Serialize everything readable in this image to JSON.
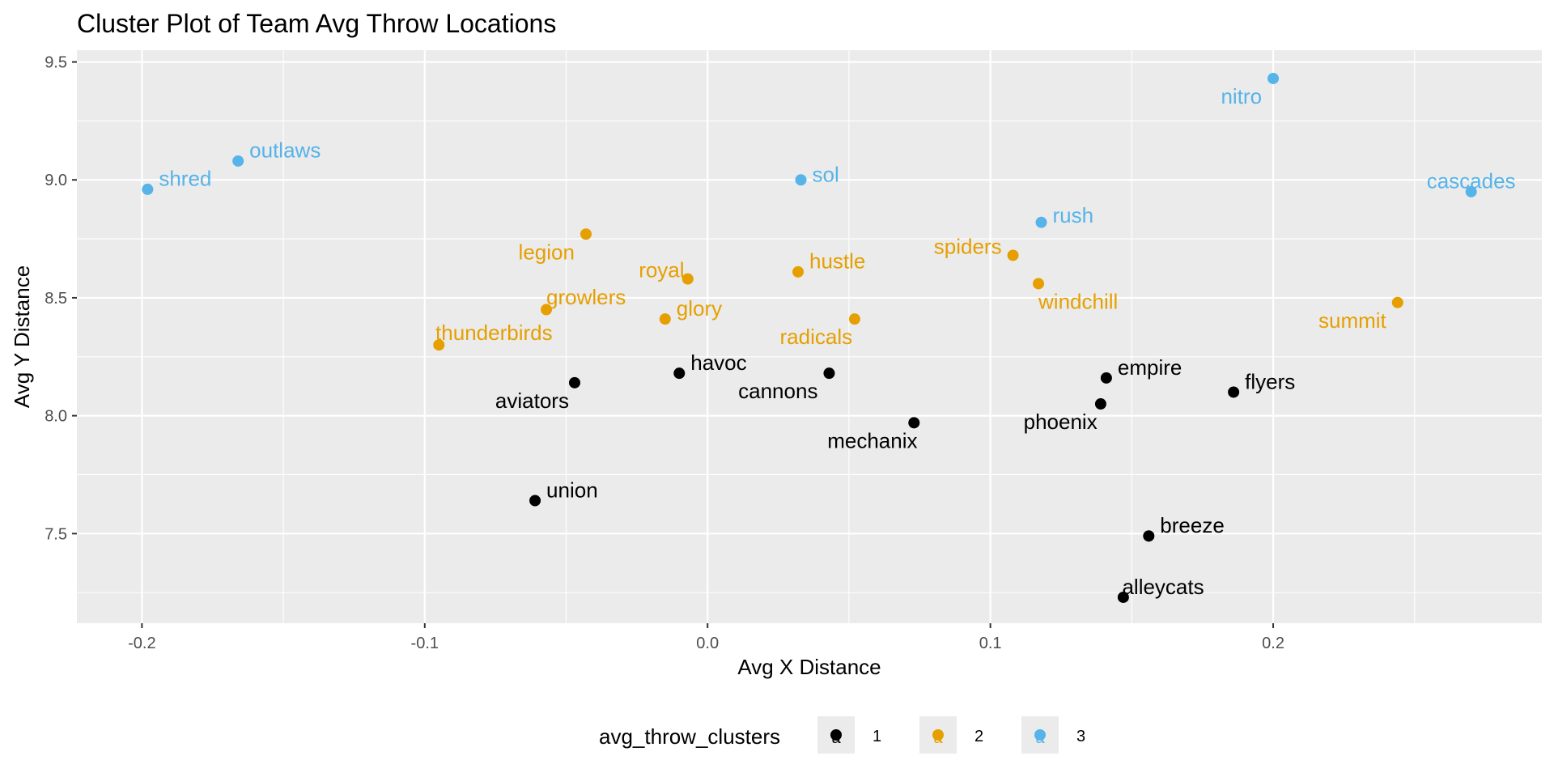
{
  "chart_data": {
    "type": "scatter",
    "title": "Cluster Plot of Team Avg Throw Locations",
    "xlabel": "Avg X Distance",
    "ylabel": "Avg Y Distance",
    "xlim": [
      -0.223,
      0.295
    ],
    "ylim": [
      7.12,
      9.55
    ],
    "x_ticks": [
      -0.2,
      -0.1,
      0.0,
      0.1,
      0.2
    ],
    "x_tick_labels": [
      "-0.2",
      "-0.1",
      "0.0",
      "0.1",
      "0.2"
    ],
    "y_ticks": [
      7.5,
      8.0,
      8.5,
      9.0,
      9.5
    ],
    "y_tick_labels": [
      "7.5",
      "8.0",
      "8.5",
      "9.0",
      "9.5"
    ],
    "grid": true,
    "legend": {
      "title": "avg_throw_clusters",
      "position": "bottom",
      "key_glyph": "a",
      "entries": [
        {
          "label": "1",
          "color": "#000000"
        },
        {
          "label": "2",
          "color": "#E69F00"
        },
        {
          "label": "3",
          "color": "#56B4E9"
        }
      ]
    },
    "colors": {
      "1": "#000000",
      "2": "#E69F00",
      "3": "#56B4E9"
    },
    "points": [
      {
        "label": "shred",
        "x": -0.198,
        "y": 8.96,
        "cluster": "3",
        "anchor": "start",
        "dx": 1,
        "dy": -0.6
      },
      {
        "label": "outlaws",
        "x": -0.166,
        "y": 9.08,
        "cluster": "3",
        "anchor": "start",
        "dx": 1,
        "dy": -0.6
      },
      {
        "label": "sol",
        "x": 0.033,
        "y": 9.0,
        "cluster": "3",
        "anchor": "start",
        "dx": 1,
        "dy": -0.3
      },
      {
        "label": "nitro",
        "x": 0.2,
        "y": 9.43,
        "cluster": "3",
        "anchor": "end",
        "dx": -1,
        "dy": 1
      },
      {
        "label": "rush",
        "x": 0.118,
        "y": 8.82,
        "cluster": "3",
        "anchor": "start",
        "dx": 1,
        "dy": -0.4
      },
      {
        "label": "cascades",
        "x": 0.27,
        "y": 8.95,
        "cluster": "3",
        "anchor": "middle",
        "dx": 0,
        "dy": -0.6
      },
      {
        "label": "legion",
        "x": -0.043,
        "y": 8.77,
        "cluster": "2",
        "anchor": "end",
        "dx": -1,
        "dy": 1
      },
      {
        "label": "royal",
        "x": -0.007,
        "y": 8.58,
        "cluster": "2",
        "anchor": "end",
        "dx": -0.3,
        "dy": -0.5
      },
      {
        "label": "hustle",
        "x": 0.032,
        "y": 8.61,
        "cluster": "2",
        "anchor": "start",
        "dx": 1,
        "dy": -0.6
      },
      {
        "label": "spiders",
        "x": 0.108,
        "y": 8.68,
        "cluster": "2",
        "anchor": "end",
        "dx": -1,
        "dy": -0.5
      },
      {
        "label": "growlers",
        "x": -0.057,
        "y": 8.45,
        "cluster": "2",
        "anchor": "start",
        "dx": 0,
        "dy": -0.7
      },
      {
        "label": "glory",
        "x": -0.015,
        "y": 8.41,
        "cluster": "2",
        "anchor": "start",
        "dx": 1,
        "dy": -0.6
      },
      {
        "label": "windchill",
        "x": 0.117,
        "y": 8.56,
        "cluster": "2",
        "anchor": "start",
        "dx": 0,
        "dy": 1
      },
      {
        "label": "summit",
        "x": 0.244,
        "y": 8.48,
        "cluster": "2",
        "anchor": "end",
        "dx": -1,
        "dy": 1
      },
      {
        "label": "thunderbirds",
        "x": -0.095,
        "y": 8.3,
        "cluster": "2",
        "anchor": "start",
        "dx": -0.3,
        "dy": -0.7
      },
      {
        "label": "radicals",
        "x": 0.052,
        "y": 8.41,
        "cluster": "2",
        "anchor": "end",
        "dx": -0.2,
        "dy": 1
      },
      {
        "label": "havoc",
        "x": -0.01,
        "y": 8.18,
        "cluster": "1",
        "anchor": "start",
        "dx": 1,
        "dy": -0.6
      },
      {
        "label": "aviators",
        "x": -0.047,
        "y": 8.14,
        "cluster": "1",
        "anchor": "end",
        "dx": -0.5,
        "dy": 1
      },
      {
        "label": "cannons",
        "x": 0.043,
        "y": 8.18,
        "cluster": "1",
        "anchor": "end",
        "dx": -1,
        "dy": 1
      },
      {
        "label": "empire",
        "x": 0.141,
        "y": 8.16,
        "cluster": "1",
        "anchor": "start",
        "dx": 1,
        "dy": -0.6
      },
      {
        "label": "flyers",
        "x": 0.186,
        "y": 8.1,
        "cluster": "1",
        "anchor": "start",
        "dx": 1,
        "dy": -0.6
      },
      {
        "label": "phoenix",
        "x": 0.139,
        "y": 8.05,
        "cluster": "1",
        "anchor": "end",
        "dx": -0.3,
        "dy": 1
      },
      {
        "label": "mechanix",
        "x": 0.073,
        "y": 7.97,
        "cluster": "1",
        "anchor": "end",
        "dx": 0.3,
        "dy": 1
      },
      {
        "label": "union",
        "x": -0.061,
        "y": 7.64,
        "cluster": "1",
        "anchor": "start",
        "dx": 1,
        "dy": -0.6
      },
      {
        "label": "breeze",
        "x": 0.156,
        "y": 7.49,
        "cluster": "1",
        "anchor": "start",
        "dx": 1,
        "dy": -0.6
      },
      {
        "label": "alleycats",
        "x": 0.147,
        "y": 7.23,
        "cluster": "1",
        "anchor": "start",
        "dx": -0.1,
        "dy": -0.6
      }
    ]
  }
}
